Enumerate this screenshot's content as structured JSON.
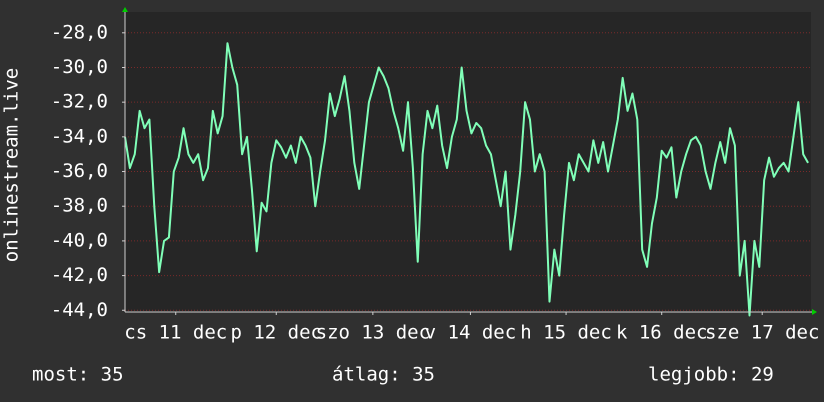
{
  "chart_data": {
    "type": "line",
    "y_label": "onlinestream.live",
    "color": "#80ffb8",
    "grid": true,
    "xlim": [
      0,
      7.03
    ],
    "ylim": [
      -44.1,
      -26.8
    ],
    "yticks": [
      {
        "value": -28,
        "label": "-28,0"
      },
      {
        "value": -30,
        "label": "-30,0"
      },
      {
        "value": -32,
        "label": "-32,0"
      },
      {
        "value": -34,
        "label": "-34,0"
      },
      {
        "value": -36,
        "label": "-36,0"
      },
      {
        "value": -38,
        "label": "-38,0"
      },
      {
        "value": -40,
        "label": "-40,0"
      },
      {
        "value": -42,
        "label": "-42,0"
      },
      {
        "value": -44,
        "label": "-44,0"
      }
    ],
    "xticks": [
      {
        "value": 0.52,
        "label": "cs 11 dec"
      },
      {
        "value": 1.55,
        "label": "p 12 dec"
      },
      {
        "value": 2.54,
        "label": "szo 13 dec"
      },
      {
        "value": 3.54,
        "label": "v 14 dec"
      },
      {
        "value": 4.52,
        "label": "h 15 dec"
      },
      {
        "value": 5.5,
        "label": "k 16 dec"
      },
      {
        "value": 6.53,
        "label": "sze 17 dec"
      }
    ],
    "x": [
      0,
      0.05,
      0.1,
      0.15,
      0.2,
      0.25,
      0.3,
      0.35,
      0.4,
      0.45,
      0.5,
      0.55,
      0.6,
      0.65,
      0.7,
      0.75,
      0.8,
      0.85,
      0.9,
      0.95,
      1,
      1.05,
      1.1,
      1.15,
      1.2,
      1.25,
      1.3,
      1.35,
      1.4,
      1.45,
      1.5,
      1.55,
      1.6,
      1.65,
      1.7,
      1.75,
      1.8,
      1.85,
      1.9,
      1.95,
      2,
      2.05,
      2.1,
      2.15,
      2.2,
      2.25,
      2.3,
      2.35,
      2.4,
      2.45,
      2.5,
      2.55,
      2.6,
      2.65,
      2.7,
      2.75,
      2.8,
      2.85,
      2.9,
      2.95,
      3,
      3.05,
      3.1,
      3.15,
      3.2,
      3.25,
      3.3,
      3.35,
      3.4,
      3.45,
      3.5,
      3.55,
      3.6,
      3.65,
      3.7,
      3.75,
      3.8,
      3.85,
      3.9,
      3.95,
      4,
      4.05,
      4.1,
      4.15,
      4.2,
      4.25,
      4.3,
      4.35,
      4.4,
      4.45,
      4.5,
      4.55,
      4.6,
      4.65,
      4.7,
      4.75,
      4.8,
      4.85,
      4.9,
      4.95,
      5,
      5.05,
      5.1,
      5.15,
      5.2,
      5.25,
      5.3,
      5.35,
      5.4,
      5.45,
      5.5,
      5.55,
      5.6,
      5.65,
      5.7,
      5.75,
      5.8,
      5.85,
      5.9,
      5.95,
      6,
      6.05,
      6.1,
      6.15,
      6.2,
      6.25,
      6.3,
      6.35,
      6.4,
      6.45,
      6.5,
      6.55,
      6.6,
      6.65,
      6.7,
      6.75,
      6.8,
      6.85,
      6.9,
      6.95,
      7
    ],
    "values": [
      -34,
      -35.8,
      -35,
      -32.5,
      -33.5,
      -33,
      -38,
      -41.8,
      -40,
      -39.8,
      -36,
      -35.2,
      -33.5,
      -35,
      -35.5,
      -35,
      -36.5,
      -35.8,
      -32.5,
      -33.8,
      -32.8,
      -28.6,
      -30,
      -31,
      -35,
      -34,
      -37,
      -40.6,
      -37.8,
      -38.3,
      -35.5,
      -34.2,
      -34.6,
      -35.2,
      -34.5,
      -35.5,
      -34,
      -34.5,
      -35.2,
      -38,
      -36,
      -34.2,
      -31.5,
      -32.8,
      -31.8,
      -30.5,
      -32.5,
      -35.5,
      -37,
      -34.5,
      -32,
      -31,
      -30,
      -30.5,
      -31.2,
      -32.5,
      -33.5,
      -34.8,
      -32,
      -35.8,
      -41.2,
      -35,
      -32.5,
      -33.5,
      -32.2,
      -34.5,
      -35.8,
      -34,
      -33,
      -30,
      -32.5,
      -33.8,
      -33.2,
      -33.5,
      -34.5,
      -35,
      -36.5,
      -38,
      -36,
      -40.5,
      -38.5,
      -36,
      -32,
      -33,
      -36,
      -35,
      -36,
      -43.5,
      -40.5,
      -42,
      -38.5,
      -35.5,
      -36.5,
      -35,
      -35.5,
      -36,
      -34.2,
      -35.5,
      -34.3,
      -36,
      -34.5,
      -33,
      -30.6,
      -32.5,
      -31.5,
      -33,
      -40.5,
      -41.5,
      -39,
      -37.5,
      -34.8,
      -35.2,
      -34.6,
      -37.5,
      -36,
      -35,
      -34.2,
      -34,
      -34.5,
      -36,
      -37,
      -35.5,
      -34.3,
      -35.5,
      -33.5,
      -34.5,
      -42,
      -40,
      -44.3,
      -40,
      -41.5,
      -36.5,
      -35.2,
      -36.3,
      -35.8,
      -35.5,
      -36,
      -34,
      -32,
      -35,
      -35.5
    ]
  },
  "footer": {
    "current": "most: 35",
    "average": "átlag: 35",
    "best": "legjobb: 29"
  }
}
